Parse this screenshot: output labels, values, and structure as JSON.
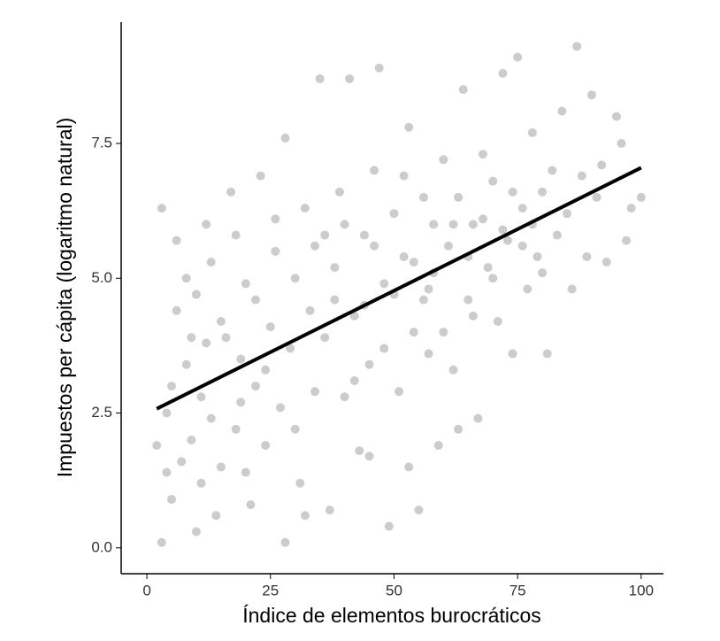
{
  "chart_data": {
    "type": "scatter",
    "x_label": "Índice de elementos burocráticos",
    "y_label": "Impuestos per cápita (logaritmo natural)",
    "xlim": [
      -5.2,
      104.5
    ],
    "ylim": [
      -0.48,
      9.75
    ],
    "xticks": [
      0,
      25,
      50,
      75,
      100
    ],
    "yticks": [
      {
        "value": 0,
        "label": "0.0"
      },
      2.5,
      {
        "value": 5,
        "label": "5.0"
      },
      7.5
    ],
    "grid": false,
    "series": [
      {
        "color": "#aaaaaa",
        "x": [
          2,
          3,
          3,
          4,
          5,
          6,
          7,
          8,
          9,
          10,
          10,
          11,
          12,
          12,
          13,
          14,
          15,
          15,
          8,
          5,
          6,
          11,
          13,
          4,
          9,
          17,
          18,
          19,
          20,
          21,
          22,
          23,
          24,
          25,
          26,
          27,
          28,
          28,
          29,
          30,
          31,
          32,
          33,
          34,
          35,
          16,
          18,
          20,
          22,
          24,
          26,
          30,
          32,
          34,
          19,
          36,
          37,
          38,
          39,
          40,
          41,
          42,
          43,
          44,
          45,
          46,
          47,
          48,
          49,
          50,
          51,
          52,
          53,
          54,
          55,
          56,
          57,
          58,
          59,
          60,
          38,
          40,
          42,
          44,
          46,
          48,
          50,
          52,
          54,
          56,
          58,
          53,
          45,
          36,
          57,
          61,
          62,
          63,
          64,
          65,
          66,
          67,
          68,
          69,
          70,
          71,
          72,
          73,
          74,
          75,
          76,
          77,
          78,
          79,
          80,
          81,
          82,
          83,
          84,
          85,
          86,
          87,
          88,
          89,
          90,
          91,
          92,
          93,
          95,
          96,
          97,
          98,
          100,
          62,
          65,
          68,
          70,
          72,
          74,
          76,
          78,
          80,
          66,
          63,
          60
        ],
        "values": [
          1.9,
          0.1,
          6.3,
          2.5,
          0.9,
          5.7,
          1.6,
          3.4,
          2.0,
          0.3,
          4.7,
          1.2,
          6.0,
          3.8,
          2.4,
          0.6,
          4.2,
          1.5,
          5.0,
          3.0,
          4.4,
          2.8,
          5.3,
          1.4,
          3.9,
          6.6,
          2.2,
          3.5,
          4.9,
          0.8,
          3.0,
          6.9,
          1.9,
          4.1,
          5.5,
          2.6,
          7.6,
          0.1,
          3.7,
          5.0,
          1.2,
          6.3,
          4.4,
          2.9,
          8.7,
          3.9,
          5.8,
          1.4,
          4.6,
          3.3,
          6.1,
          2.2,
          0.6,
          5.6,
          2.7,
          3.9,
          0.7,
          5.2,
          6.6,
          2.8,
          8.7,
          4.3,
          1.8,
          5.8,
          3.4,
          7.0,
          8.9,
          4.9,
          0.4,
          6.2,
          2.9,
          5.4,
          7.8,
          4.0,
          0.7,
          6.5,
          3.6,
          5.1,
          1.9,
          7.2,
          4.6,
          6.0,
          3.1,
          4.5,
          5.6,
          3.7,
          4.7,
          6.9,
          5.3,
          4.6,
          6.0,
          1.5,
          1.7,
          5.8,
          4.8,
          5.6,
          3.3,
          6.5,
          8.5,
          4.6,
          6.0,
          2.4,
          7.3,
          5.2,
          6.8,
          4.2,
          8.8,
          5.7,
          3.6,
          9.1,
          6.3,
          4.8,
          7.7,
          5.4,
          6.6,
          3.6,
          7.0,
          5.8,
          8.1,
          6.2,
          4.8,
          9.3,
          6.9,
          5.4,
          8.4,
          6.5,
          7.1,
          5.3,
          8.0,
          7.5,
          5.7,
          6.3,
          6.5,
          6.0,
          5.4,
          6.1,
          5.0,
          5.9,
          6.6,
          5.6,
          6.0,
          5.1,
          4.3,
          2.2,
          4.0
        ]
      },
      {
        "type": "line",
        "color": "#000000",
        "x": [
          2,
          100
        ],
        "values": [
          2.58,
          7.05
        ]
      }
    ]
  }
}
